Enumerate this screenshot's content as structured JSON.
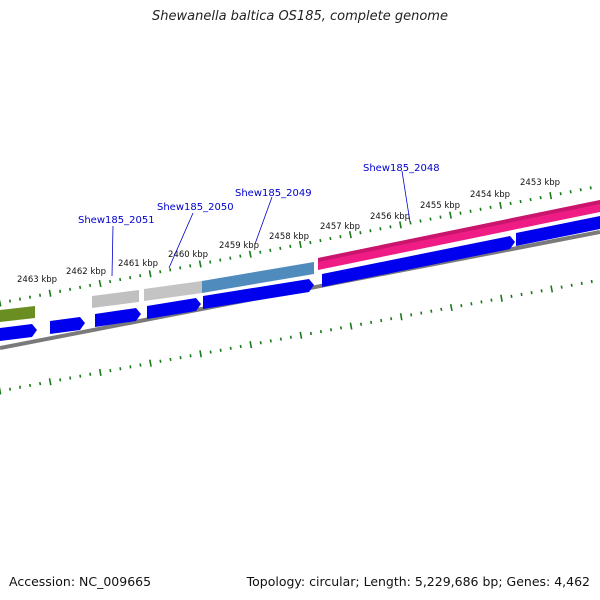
{
  "title": "Shewanella baltica OS185, complete genome",
  "footer": {
    "accession": "Accession: NC_009665",
    "summary": "Topology: circular; Length: 5,229,686 bp; Genes: 4,462"
  },
  "colors": {
    "forward_cds": "#0000ee",
    "gene_grey": "#c0c0c0",
    "gene_steelblue": "#4f8bbd",
    "gene_pink": "#ee1c84",
    "gene_olive": "#6b8e23",
    "backbone": "#7a7a7a",
    "tick": "#1a7a1a",
    "label": "#0000cc"
  },
  "kbp_labels": [
    "2463 kbp",
    "2462 kbp",
    "2461 kbp",
    "2460 kbp",
    "2459 kbp",
    "2458 kbp",
    "2457 kbp",
    "2456 kbp",
    "2455 kbp",
    "2454 kbp",
    "2453 kbp"
  ],
  "gene_labels": [
    "Shew185_2051",
    "Shew185_2050",
    "Shew185_2049",
    "Shew185_2048"
  ]
}
